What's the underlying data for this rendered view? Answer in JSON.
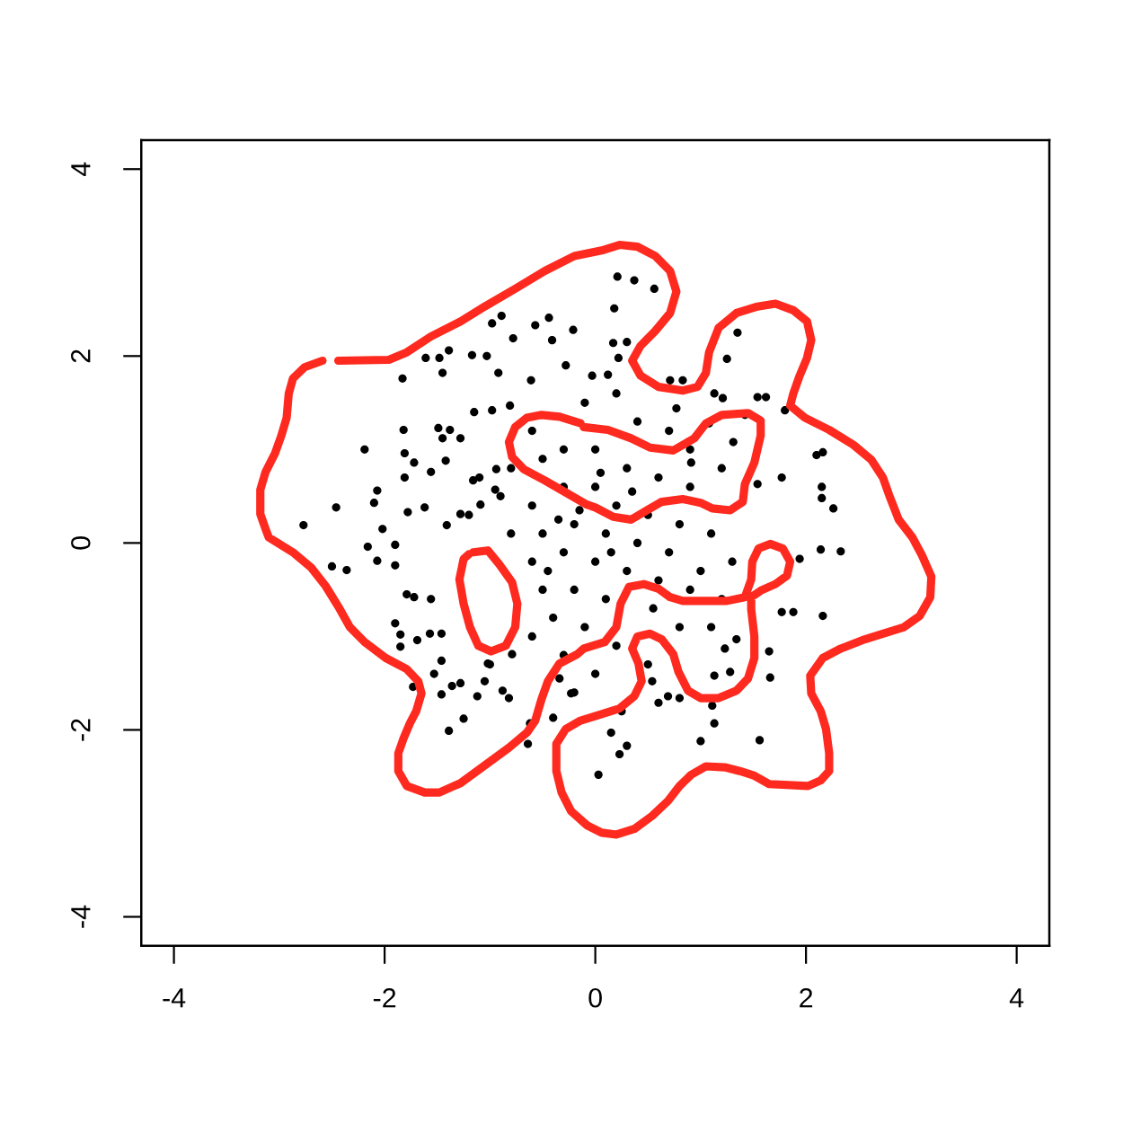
{
  "chart_data": {
    "type": "scatter",
    "xlim": [
      -4.31,
      4.31
    ],
    "ylim": [
      -4.31,
      4.31
    ],
    "xticks": [
      {
        "value": -4,
        "label": "-4"
      },
      {
        "value": -2,
        "label": "-2"
      },
      0,
      2,
      4
    ],
    "yticks": [
      {
        "value": -4,
        "label": "-4"
      },
      {
        "value": -2,
        "label": "-2"
      },
      0,
      2,
      4
    ],
    "line_style": "solid",
    "series": [
      {
        "marker": "circle",
        "color": "#000000",
        "x": [
          -0.98,
          -0.89,
          -0.57,
          -0.44,
          -0.21,
          -0.78,
          -0.41,
          -1.61,
          -1.48,
          -1.39,
          -1.17,
          -1.03,
          -1.45,
          -0.92,
          -0.61,
          -1.83,
          -0.28,
          -0.03,
          -1.15,
          -0.98,
          -0.81,
          -2.19,
          -1.82,
          -1.49,
          -1.38,
          -1.45,
          -1.28,
          -1.81,
          -1.72,
          -1.42,
          -1.56,
          -1.81,
          -2.07,
          -2.46,
          -2.77,
          -2.1,
          -1.78,
          -1.62,
          -2.02,
          -2.16,
          -1.9,
          -1.41,
          -1.28,
          -1.09,
          -1.16,
          -0.94,
          -0.95,
          0.21,
          0.37,
          0.56,
          0.18,
          0.17,
          0.3,
          0.22,
          1.35,
          1.25,
          0.12,
          0.71,
          0.83,
          1.13,
          1.21,
          1.54,
          1.62,
          1.8,
          2.1,
          2.16,
          2.15,
          2.15,
          2.26,
          1.77,
          1.54,
          1.31,
          0.91,
          1.08,
          0.77,
          1.42,
          2.14,
          2.33,
          2.16,
          1.88,
          1.77,
          1.65,
          1.66,
          1.11,
          1.13,
          1.0,
          1.56,
          0.3,
          0.23,
          0.03,
          0.15,
          0.6,
          0.69,
          0.8,
          1.13,
          1.28,
          1.34,
          1.23,
          0.54,
          1.94,
          -2.5,
          -2.36,
          -2.07,
          -1.9,
          -1.79,
          -1.72,
          -1.56,
          -1.9,
          -1.85,
          -1.85,
          -1.69,
          -1.57,
          -1.46,
          -1.46,
          -1.53,
          -1.46,
          -1.36,
          -1.28,
          -1.12,
          -1.25,
          -1.39,
          -1.73,
          -1.02,
          -1.05,
          -0.88,
          -0.82,
          -0.62,
          -0.4,
          -0.64,
          -0.34,
          -0.23,
          -0.79,
          -0.5,
          -0.3,
          0.0,
          0.3,
          0.6,
          0.9,
          1.2,
          -0.9,
          -0.6,
          -0.3,
          0.0,
          0.2,
          0.5,
          0.8,
          1.1,
          1.3,
          -1.2,
          -0.8,
          -0.5,
          -0.2,
          0.1,
          0.4,
          0.7,
          1.0,
          -0.6,
          -0.3,
          0.0,
          0.3,
          0.6,
          0.9,
          1.2,
          -0.5,
          -0.2,
          0.1,
          -0.4,
          -0.1,
          0.2,
          -0.3,
          0.0,
          0.5,
          0.8,
          1.1,
          -0.6,
          -1.0,
          -0.8,
          -1.1,
          0.4,
          0.7,
          -0.1,
          0.2,
          -0.6,
          0.9,
          -0.15,
          0.05,
          0.35,
          -0.35,
          0.15,
          -0.45,
          0.55,
          -0.2,
          0.25
        ],
        "values": [
          2.35,
          2.43,
          2.33,
          2.41,
          2.28,
          2.19,
          2.17,
          1.98,
          1.98,
          2.06,
          2.01,
          2.0,
          1.82,
          1.82,
          1.74,
          1.76,
          1.9,
          1.79,
          1.4,
          1.42,
          1.47,
          1.0,
          1.21,
          1.23,
          1.21,
          1.12,
          1.12,
          0.96,
          0.86,
          0.88,
          0.76,
          0.7,
          0.56,
          0.38,
          0.19,
          0.43,
          0.33,
          0.38,
          0.15,
          -0.04,
          -0.02,
          0.19,
          0.31,
          0.41,
          0.67,
          0.79,
          0.57,
          2.85,
          2.81,
          2.72,
          2.51,
          2.14,
          2.15,
          1.98,
          2.25,
          1.97,
          1.8,
          1.74,
          1.74,
          1.6,
          1.55,
          1.56,
          1.56,
          1.42,
          0.94,
          0.97,
          0.6,
          0.48,
          0.37,
          0.7,
          0.63,
          1.08,
          0.86,
          1.28,
          1.44,
          1.37,
          -0.07,
          -0.09,
          -0.78,
          -0.74,
          -0.74,
          -1.16,
          -1.44,
          -1.74,
          -1.93,
          -2.12,
          -2.11,
          -2.17,
          -2.26,
          -2.48,
          -2.03,
          -1.71,
          -1.64,
          -1.66,
          -1.42,
          -1.38,
          -1.03,
          -1.13,
          -1.48,
          -0.17,
          -0.25,
          -0.29,
          -0.19,
          -0.24,
          -0.55,
          -0.58,
          -0.6,
          -0.86,
          -0.98,
          -1.11,
          -1.04,
          -0.97,
          -0.97,
          -1.26,
          -1.4,
          -1.62,
          -1.53,
          -1.5,
          -1.64,
          -1.88,
          -2.01,
          -1.54,
          -1.29,
          -1.48,
          -1.58,
          -1.66,
          -1.93,
          -1.87,
          -2.15,
          -1.45,
          -1.61,
          -1.19,
          0.9,
          1.0,
          1.0,
          0.8,
          0.7,
          0.6,
          0.8,
          0.5,
          0.4,
          0.6,
          0.6,
          0.4,
          0.3,
          0.2,
          0.1,
          -0.2,
          0.3,
          0.1,
          0.1,
          0.2,
          0.1,
          0.0,
          -0.1,
          -0.3,
          -0.2,
          -0.1,
          -0.2,
          -0.3,
          -0.4,
          -0.5,
          -0.6,
          -0.5,
          -0.5,
          -0.6,
          -0.8,
          -0.9,
          -1.1,
          -1.2,
          -1.4,
          -1.3,
          -0.9,
          -0.9,
          -1.0,
          -1.3,
          0.8,
          0.7,
          1.3,
          1.2,
          1.5,
          1.6,
          1.2,
          1.0,
          0.35,
          0.75,
          0.55,
          0.25,
          -0.1,
          -0.3,
          -0.7,
          -1.6,
          -1.8
        ]
      },
      {
        "type": "line",
        "color": "#ff2a1f",
        "x": [
          -2.44,
          -1.96,
          -1.79,
          -1.56,
          -1.28,
          -1.05,
          -0.76,
          -0.48,
          -0.2,
          0.06,
          0.23,
          0.4,
          0.57,
          0.71,
          0.77,
          0.71,
          0.57,
          0.43,
          0.35,
          0.43,
          0.6,
          0.83,
          0.97,
          1.05,
          1.08,
          1.17,
          1.34,
          1.54,
          1.71,
          1.88,
          2.01,
          2.05,
          2.01,
          1.94,
          1.88,
          1.85,
          1.99,
          2.22,
          2.45,
          2.62,
          2.73,
          2.79,
          2.88,
          3.01,
          3.1,
          3.19,
          3.18,
          3.08,
          2.93,
          2.73,
          2.56,
          2.33,
          2.16,
          2.04,
          2.05,
          2.14,
          2.19,
          2.22,
          2.22,
          2.14,
          2.02,
          1.65,
          1.51,
          1.37,
          1.23,
          1.05,
          0.91,
          0.8,
          0.69,
          0.54,
          0.37,
          0.2,
          0.06,
          -0.08,
          -0.23,
          -0.32,
          -0.37,
          -0.37,
          -0.28,
          -0.14,
          0.06,
          0.23,
          0.37,
          0.44,
          0.41,
          0.35,
          0.4,
          0.52,
          0.63,
          0.74,
          0.79,
          0.88,
          1.0,
          1.17,
          1.34,
          1.45,
          1.51,
          1.51,
          1.48,
          1.48,
          1.57,
          1.71,
          1.82,
          1.85,
          1.78,
          1.66,
          1.55,
          1.49,
          1.48,
          1.42,
          1.25,
          1.03,
          0.83,
          0.71,
          0.6,
          0.46,
          0.32,
          0.24,
          0.2,
          0.09,
          -0.11,
          -0.17,
          -0.34,
          -0.45,
          -0.51,
          -0.57,
          -0.65,
          -0.82,
          -1.05,
          -1.28,
          -1.48,
          -1.62,
          -1.79,
          -1.87,
          -1.87,
          -1.82,
          -1.76,
          -1.7,
          -1.65,
          -1.68,
          -1.79,
          -1.99,
          -2.19,
          -2.33,
          -2.44,
          -2.56,
          -2.7,
          -2.87,
          -3.1,
          -3.13,
          -3.18,
          -3.18,
          -3.13,
          -3.04,
          -2.98,
          -2.93,
          -2.91,
          -2.87,
          -2.76,
          -2.59
        ],
        "values": [
          1.95,
          1.96,
          2.04,
          2.21,
          2.37,
          2.53,
          2.72,
          2.91,
          3.07,
          3.13,
          3.19,
          3.17,
          3.07,
          2.91,
          2.69,
          2.46,
          2.27,
          2.11,
          1.95,
          1.79,
          1.67,
          1.63,
          1.67,
          1.82,
          2.04,
          2.3,
          2.46,
          2.53,
          2.56,
          2.49,
          2.37,
          2.17,
          1.98,
          1.79,
          1.6,
          1.47,
          1.34,
          1.21,
          1.05,
          0.89,
          0.7,
          0.51,
          0.25,
          0.06,
          -0.13,
          -0.36,
          -0.58,
          -0.78,
          -0.9,
          -0.97,
          -1.03,
          -1.13,
          -1.23,
          -1.42,
          -1.61,
          -1.8,
          -1.99,
          -2.25,
          -2.44,
          -2.54,
          -2.6,
          -2.58,
          -2.49,
          -2.44,
          -2.4,
          -2.39,
          -2.48,
          -2.6,
          -2.76,
          -2.92,
          -3.06,
          -3.12,
          -3.1,
          -3.02,
          -2.87,
          -2.67,
          -2.44,
          -2.15,
          -1.99,
          -1.9,
          -1.83,
          -1.77,
          -1.64,
          -1.48,
          -1.29,
          -1.13,
          -1.0,
          -0.97,
          -1.03,
          -1.19,
          -1.38,
          -1.58,
          -1.66,
          -1.66,
          -1.58,
          -1.45,
          -1.23,
          -1.0,
          -0.71,
          -0.58,
          -0.51,
          -0.44,
          -0.35,
          -0.2,
          -0.06,
          -0.01,
          -0.06,
          -0.2,
          -0.39,
          -0.58,
          -0.62,
          -0.62,
          -0.62,
          -0.58,
          -0.49,
          -0.44,
          -0.47,
          -0.65,
          -0.9,
          -1.06,
          -1.13,
          -1.19,
          -1.29,
          -1.48,
          -1.67,
          -1.9,
          -2.03,
          -2.19,
          -2.38,
          -2.57,
          -2.67,
          -2.67,
          -2.6,
          -2.44,
          -2.25,
          -2.09,
          -1.93,
          -1.8,
          -1.61,
          -1.48,
          -1.35,
          -1.23,
          -1.06,
          -0.9,
          -0.68,
          -0.46,
          -0.26,
          -0.1,
          0.06,
          0.15,
          0.31,
          0.57,
          0.76,
          0.96,
          1.15,
          1.34,
          1.6,
          1.76,
          1.88,
          1.95
        ]
      },
      {
        "type": "line",
        "color": "#ff2a1f",
        "x": [
          -0.11,
          0.12,
          0.34,
          0.52,
          0.74,
          0.94,
          1.05,
          1.2,
          1.45,
          1.57,
          1.57,
          1.51,
          1.42,
          1.4,
          1.28,
          1.11,
          1.0,
          0.83,
          0.63,
          0.49,
          0.34,
          0.17,
          0.0,
          -0.08,
          -0.28,
          -0.48,
          -0.68,
          -0.79,
          -0.82,
          -0.76,
          -0.65,
          -0.51,
          -0.34,
          -0.14
        ],
        "values": [
          1.24,
          1.21,
          1.12,
          1.02,
          0.99,
          1.12,
          1.28,
          1.37,
          1.39,
          1.31,
          1.15,
          0.86,
          0.63,
          0.44,
          0.35,
          0.37,
          0.43,
          0.47,
          0.44,
          0.35,
          0.25,
          0.28,
          0.38,
          0.41,
          0.54,
          0.67,
          0.79,
          0.92,
          1.08,
          1.24,
          1.34,
          1.37,
          1.35,
          1.28
        ]
      },
      {
        "type": "line",
        "color": "#ff2a1f",
        "x": [
          -1.16,
          -1.02,
          -0.91,
          -0.79,
          -0.74,
          -0.76,
          -0.85,
          -0.99,
          -1.11,
          -1.19,
          -1.25,
          -1.29,
          -1.25,
          -1.2
        ],
        "values": [
          -0.1,
          -0.08,
          -0.23,
          -0.42,
          -0.65,
          -0.9,
          -1.1,
          -1.16,
          -1.1,
          -0.9,
          -0.65,
          -0.39,
          -0.17,
          -0.12
        ]
      }
    ]
  }
}
